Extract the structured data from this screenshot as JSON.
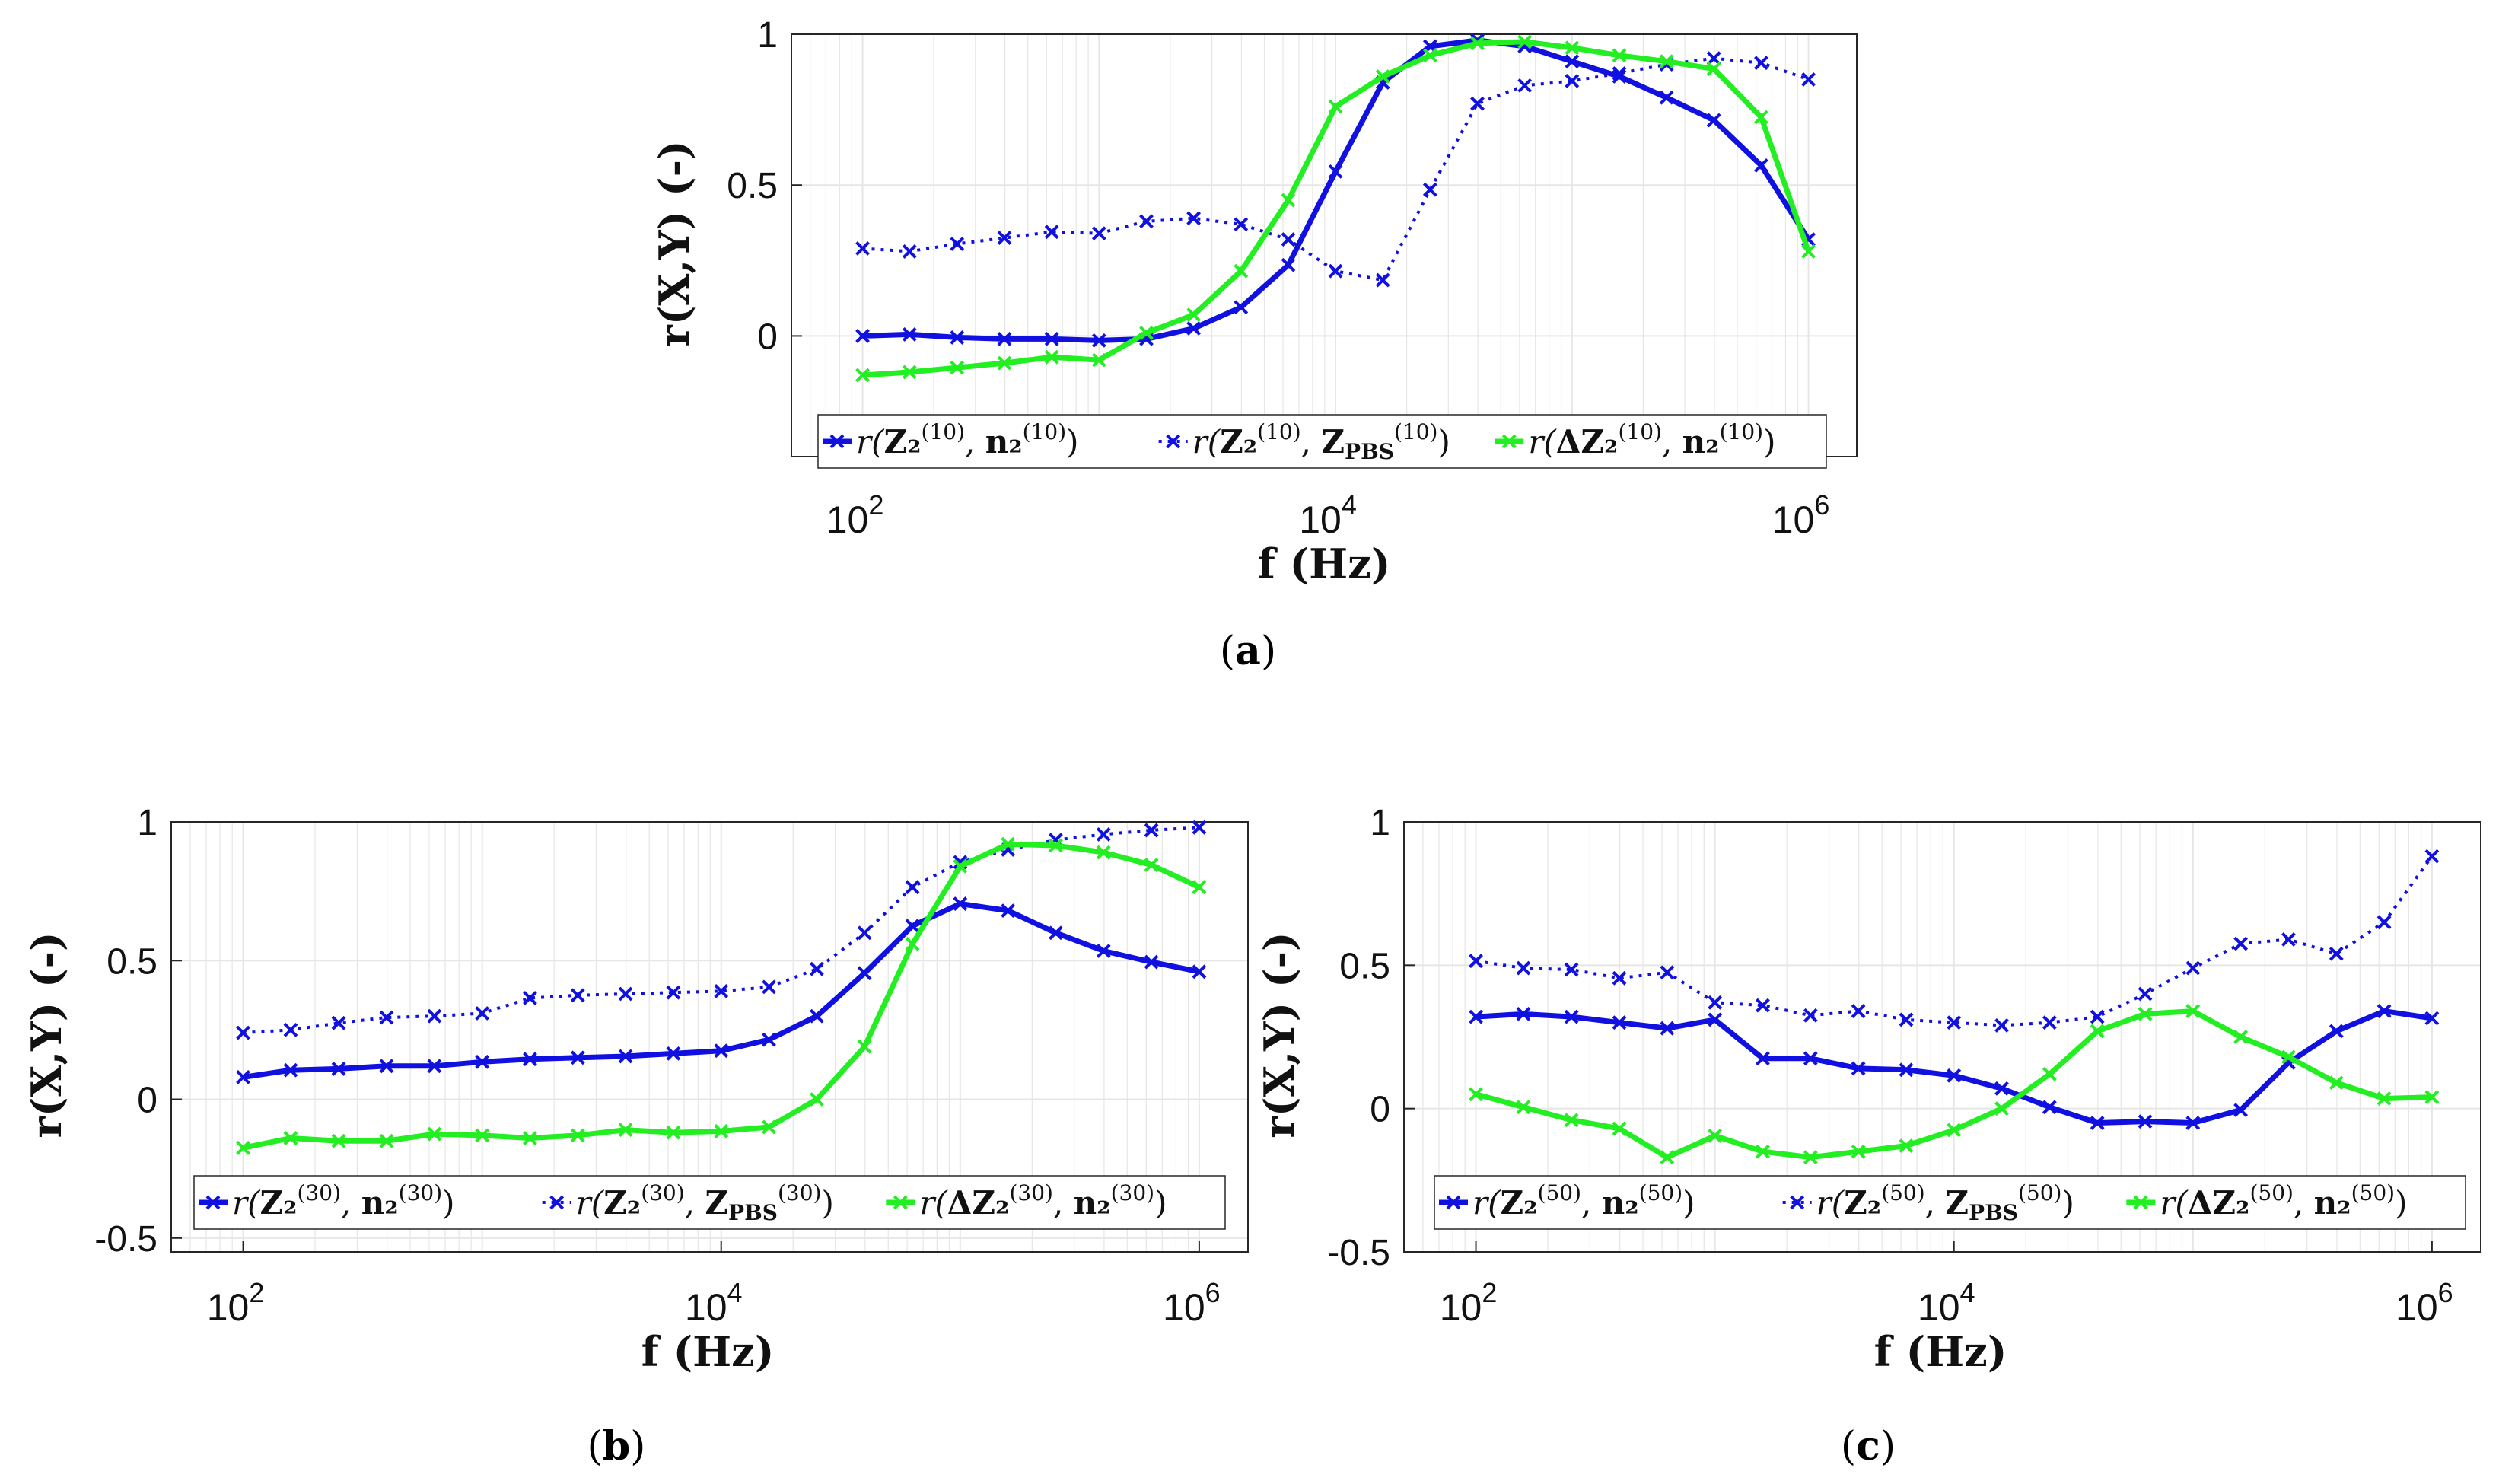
{
  "chart_data": [
    {
      "type": "line",
      "panel": "a",
      "caption": "(a)",
      "xlabel": "f (Hz)",
      "ylabel": "r(X,Y) (-)",
      "xscale": "log",
      "xlim": [
        50,
        1600000
      ],
      "ylim": [
        -0.4,
        1
      ],
      "yticks": [
        0,
        0.5,
        1
      ],
      "xticks": [
        100,
        10000,
        1000000
      ],
      "xtick_labels": [
        "10^2",
        "10^4",
        "10^6"
      ],
      "legend_position": "bottom",
      "grid": true,
      "x": [
        100,
        158,
        251,
        398,
        631,
        1000,
        1585,
        2512,
        3981,
        6310,
        10000,
        15849,
        25119,
        39811,
        63096,
        100000,
        158489,
        251189,
        398107,
        630957,
        1000000
      ],
      "series": [
        {
          "name": "r(Z2(10), n2(10))",
          "color": "#1010e0",
          "style": "solid",
          "values": [
            0.0,
            0.005,
            -0.005,
            -0.01,
            -0.01,
            -0.015,
            -0.01,
            0.025,
            0.095,
            0.235,
            0.545,
            0.84,
            0.96,
            0.98,
            0.96,
            0.91,
            0.86,
            0.79,
            0.715,
            0.565,
            0.32
          ]
        },
        {
          "name": "r(Z2(10), ZPBS(10))",
          "color": "#1010e0",
          "style": "dotted",
          "values": [
            0.29,
            0.28,
            0.305,
            0.325,
            0.345,
            0.34,
            0.38,
            0.39,
            0.37,
            0.32,
            0.215,
            0.185,
            0.485,
            0.77,
            0.83,
            0.845,
            0.87,
            0.9,
            0.92,
            0.905,
            0.85
          ]
        },
        {
          "name": "r(ΔZ2(10), n2(10))",
          "color": "#22ee22",
          "style": "solid",
          "values": [
            -0.13,
            -0.12,
            -0.105,
            -0.09,
            -0.07,
            -0.08,
            0.01,
            0.07,
            0.215,
            0.45,
            0.76,
            0.86,
            0.93,
            0.97,
            0.975,
            0.955,
            0.93,
            0.91,
            0.885,
            0.725,
            0.28
          ]
        }
      ]
    },
    {
      "type": "line",
      "panel": "b",
      "caption": "(b)",
      "xlabel": "f (Hz)",
      "ylabel": "r(X,Y) (-)",
      "xscale": "log",
      "xlim": [
        50,
        1600000
      ],
      "ylim": [
        -0.55,
        1
      ],
      "yticks": [
        -0.5,
        0,
        0.5,
        1
      ],
      "xticks": [
        100,
        10000,
        1000000
      ],
      "xtick_labels": [
        "10^2",
        "10^4",
        "10^6"
      ],
      "legend_position": "bottom",
      "grid": true,
      "x": [
        100,
        158,
        251,
        398,
        631,
        1000,
        1585,
        2512,
        3981,
        6310,
        10000,
        15849,
        25119,
        39811,
        63096,
        100000,
        158489,
        251189,
        398107,
        630957,
        1000000
      ],
      "series": [
        {
          "name": "r(Z2(30), n2(30))",
          "color": "#1010e0",
          "style": "solid",
          "values": [
            0.08,
            0.105,
            0.11,
            0.12,
            0.12,
            0.135,
            0.145,
            0.15,
            0.155,
            0.165,
            0.175,
            0.215,
            0.3,
            0.455,
            0.625,
            0.705,
            0.68,
            0.6,
            0.535,
            0.495,
            0.46
          ]
        },
        {
          "name": "r(Z2(30), ZPBS(30))",
          "color": "#1010e0",
          "style": "dotted",
          "values": [
            0.24,
            0.25,
            0.275,
            0.295,
            0.3,
            0.31,
            0.365,
            0.375,
            0.38,
            0.385,
            0.39,
            0.405,
            0.47,
            0.6,
            0.765,
            0.855,
            0.9,
            0.935,
            0.955,
            0.97,
            0.98
          ]
        },
        {
          "name": "r(ΔZ2(30), n2(30))",
          "color": "#22ee22",
          "style": "solid",
          "values": [
            -0.175,
            -0.14,
            -0.15,
            -0.15,
            -0.125,
            -0.13,
            -0.14,
            -0.13,
            -0.11,
            -0.12,
            -0.115,
            -0.1,
            0.0,
            0.19,
            0.56,
            0.84,
            0.92,
            0.915,
            0.89,
            0.845,
            0.765
          ]
        }
      ]
    },
    {
      "type": "line",
      "panel": "c",
      "caption": "(c)",
      "xlabel": "f (Hz)",
      "ylabel": "r(X,Y) (-)",
      "xscale": "log",
      "xlim": [
        50,
        1600000
      ],
      "ylim": [
        -0.5,
        1
      ],
      "yticks": [
        -0.5,
        0,
        0.5,
        1
      ],
      "xticks": [
        100,
        10000,
        1000000
      ],
      "xtick_labels": [
        "10^2",
        "10^4",
        "10^6"
      ],
      "legend_position": "bottom",
      "grid": true,
      "x": [
        100,
        158,
        251,
        398,
        631,
        1000,
        1585,
        2512,
        3981,
        6310,
        10000,
        15849,
        25119,
        39811,
        63096,
        100000,
        158489,
        251189,
        398107,
        630957,
        1000000
      ],
      "series": [
        {
          "name": "r(Z2(50), n2(50))",
          "color": "#1010e0",
          "style": "solid",
          "values": [
            0.32,
            0.33,
            0.32,
            0.3,
            0.28,
            0.31,
            0.175,
            0.175,
            0.14,
            0.135,
            0.115,
            0.07,
            0.005,
            -0.05,
            -0.045,
            -0.05,
            -0.005,
            0.16,
            0.27,
            0.34,
            0.315
          ]
        },
        {
          "name": "r(Z2(50), ZPBS(50))",
          "color": "#1010e0",
          "style": "dotted",
          "values": [
            0.515,
            0.49,
            0.485,
            0.455,
            0.475,
            0.37,
            0.36,
            0.325,
            0.34,
            0.31,
            0.3,
            0.29,
            0.3,
            0.32,
            0.4,
            0.49,
            0.575,
            0.59,
            0.54,
            0.65,
            0.88
          ]
        },
        {
          "name": "r(ΔZ2(50), n2(50))",
          "color": "#22ee22",
          "style": "solid",
          "values": [
            0.05,
            0.005,
            -0.04,
            -0.07,
            -0.17,
            -0.095,
            -0.15,
            -0.17,
            -0.15,
            -0.13,
            -0.075,
            0.0,
            0.12,
            0.27,
            0.33,
            0.34,
            0.25,
            0.18,
            0.09,
            0.035,
            0.04
          ]
        }
      ]
    }
  ],
  "captions": {
    "a": "a",
    "b": "b",
    "c": "c"
  },
  "legends": {
    "a": {
      "sup": "(10)"
    },
    "b": {
      "sup": "(30)"
    },
    "c": {
      "sup": "(50)"
    }
  },
  "colors": {
    "blue": "#1010e0",
    "green": "#22ee22",
    "grid": "#e6e6e6",
    "axis": "#262626"
  }
}
